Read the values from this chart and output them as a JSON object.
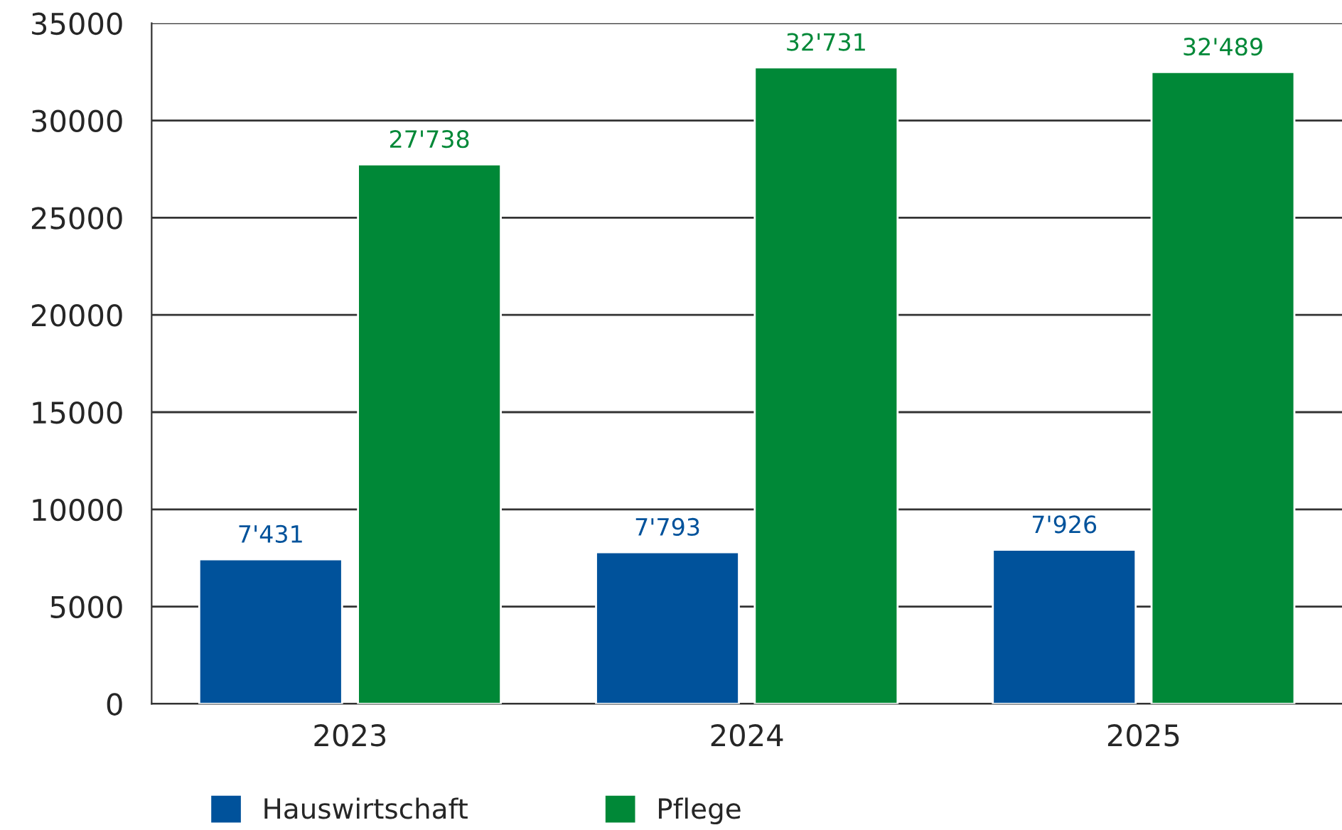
{
  "chart_data": {
    "type": "bar",
    "categories": [
      "2023",
      "2024",
      "2025"
    ],
    "series": [
      {
        "name": "Hauswirtschaft",
        "color": "#00529b",
        "values": [
          7431,
          7793,
          7926
        ],
        "value_labels": [
          "7'431",
          "7'793",
          "7'926"
        ]
      },
      {
        "name": "Pflege",
        "color": "#008837",
        "values": [
          27738,
          32731,
          32489
        ],
        "value_labels": [
          "27'738",
          "32'731",
          "32'489"
        ]
      }
    ],
    "ylim": [
      0,
      35000
    ],
    "yticks": [
      0,
      5000,
      10000,
      15000,
      20000,
      25000,
      30000,
      35000
    ],
    "grid": "y",
    "legend": "bottom"
  }
}
